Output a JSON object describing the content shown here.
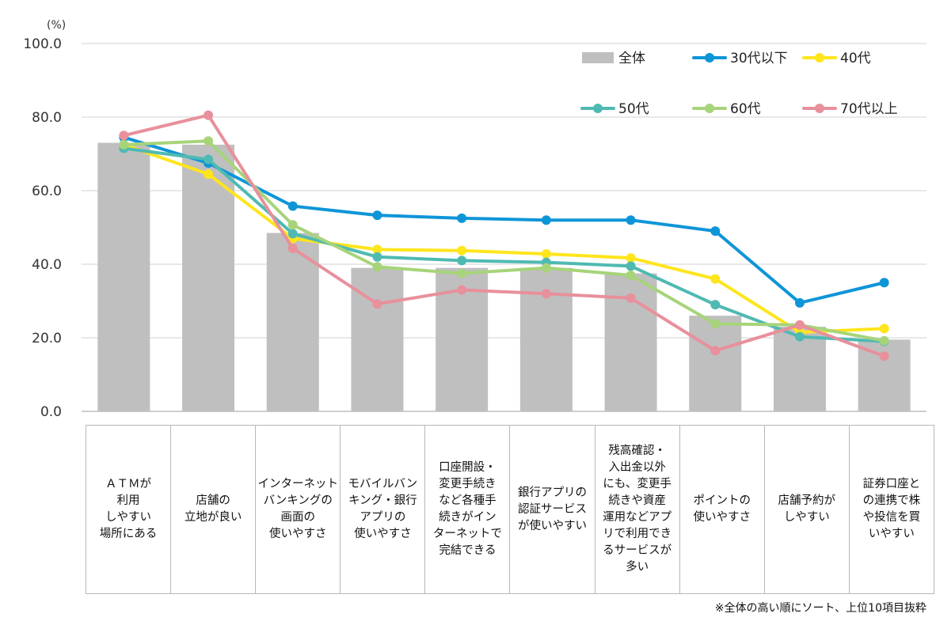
{
  "chart_data": {
    "type": "bar+line",
    "unit_label": "(%)",
    "ylim": [
      0,
      100
    ],
    "yticks": [
      "0.0",
      "20.0",
      "40.0",
      "60.0",
      "80.0",
      "100.0"
    ],
    "grid": true,
    "legend_position": "top-right",
    "categories": [
      "ＡＴＭが\n利用\nしやすい\n場所にある",
      "店舗の\n立地が良い",
      "インターネット\nバンキングの\n画面の\n使いやすさ",
      "モバイルバン\nキング・銀行\nアプリの\n使いやすさ",
      "口座開設・\n変更手続き\nなど各種手\n続きがイン\nターネットで\n完結できる",
      "銀行アプリの\n認証サービス\nが使いやすい",
      "残高確認・\n入出金以外\nにも、変更手\n続きや資産\n運用などアプ\nリで利用でき\nるサービスが\n多い",
      "ポイントの\n使いやすさ",
      "店舗予約が\nしやすい",
      "証券口座と\nの連携で株\nや投信を買\nいやすい"
    ],
    "bar_series": {
      "name": "全体",
      "color": "#bfbfbf",
      "values": [
        73.0,
        72.5,
        48.5,
        39.0,
        39.0,
        39.0,
        37.5,
        26.0,
        23.0,
        19.5
      ]
    },
    "line_series": [
      {
        "name": "30代以下",
        "color": "#0e95d8",
        "values": [
          74.5,
          67.5,
          55.8,
          53.3,
          52.5,
          52.0,
          52.0,
          49.0,
          29.5,
          35.0
        ]
      },
      {
        "name": "40代",
        "color": "#ffe51c",
        "values": [
          72.5,
          64.5,
          47.0,
          44.0,
          43.7,
          42.8,
          41.7,
          36.0,
          21.5,
          22.5
        ]
      },
      {
        "name": "50代",
        "color": "#4fbab2",
        "values": [
          71.5,
          68.5,
          48.3,
          42.0,
          41.0,
          40.5,
          39.5,
          29.0,
          20.3,
          19.0
        ]
      },
      {
        "name": "60代",
        "color": "#a7d47a",
        "values": [
          72.5,
          73.5,
          50.7,
          39.3,
          37.5,
          39.0,
          37.0,
          23.8,
          23.5,
          19.2
        ]
      },
      {
        "name": "70代以上",
        "color": "#e8909c",
        "values": [
          75.0,
          80.5,
          44.3,
          29.2,
          33.0,
          32.0,
          30.8,
          16.5,
          23.5,
          15.0
        ]
      }
    ],
    "note": "※全体の高い順にソート、上位10項目抜粋"
  }
}
